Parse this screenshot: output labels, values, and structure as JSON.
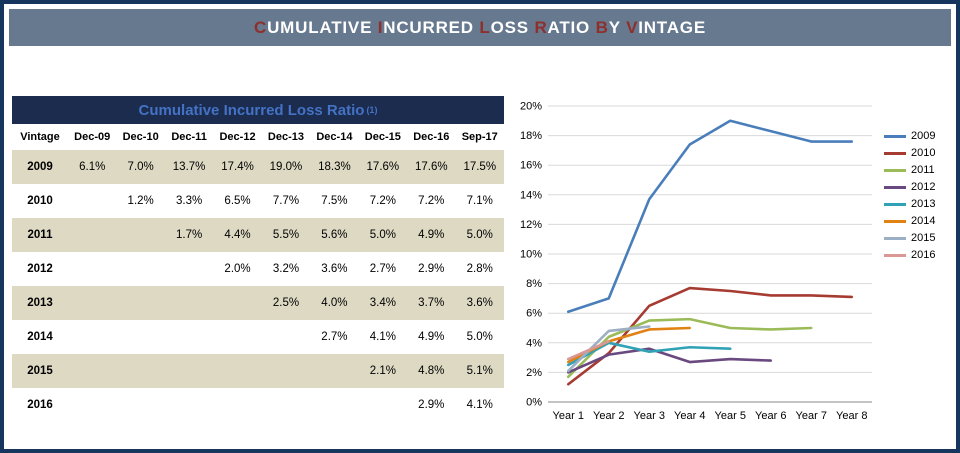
{
  "banner": {
    "title": "CUMULATIVE INCURRED LOSS RATIO BY VINTAGE"
  },
  "table": {
    "title": "Cumulative Incurred Loss Ratio",
    "title_superscript": "(1)",
    "columns": [
      "Vintage",
      "Dec-09",
      "Dec-10",
      "Dec-11",
      "Dec-12",
      "Dec-13",
      "Dec-14",
      "Dec-15",
      "Dec-16",
      "Sep-17"
    ],
    "rows": [
      {
        "vintage": "2009",
        "values": [
          "6.1%",
          "7.0%",
          "13.7%",
          "17.4%",
          "19.0%",
          "18.3%",
          "17.6%",
          "17.6%",
          "17.5%"
        ]
      },
      {
        "vintage": "2010",
        "values": [
          "",
          "1.2%",
          "3.3%",
          "6.5%",
          "7.7%",
          "7.5%",
          "7.2%",
          "7.2%",
          "7.1%"
        ]
      },
      {
        "vintage": "2011",
        "values": [
          "",
          "",
          "1.7%",
          "4.4%",
          "5.5%",
          "5.6%",
          "5.0%",
          "4.9%",
          "5.0%"
        ]
      },
      {
        "vintage": "2012",
        "values": [
          "",
          "",
          "",
          "2.0%",
          "3.2%",
          "3.6%",
          "2.7%",
          "2.9%",
          "2.8%"
        ]
      },
      {
        "vintage": "2013",
        "values": [
          "",
          "",
          "",
          "",
          "2.5%",
          "4.0%",
          "3.4%",
          "3.7%",
          "3.6%"
        ]
      },
      {
        "vintage": "2014",
        "values": [
          "",
          "",
          "",
          "",
          "",
          "2.7%",
          "4.1%",
          "4.9%",
          "5.0%"
        ]
      },
      {
        "vintage": "2015",
        "values": [
          "",
          "",
          "",
          "",
          "",
          "",
          "2.1%",
          "4.8%",
          "5.1%"
        ]
      },
      {
        "vintage": "2016",
        "values": [
          "",
          "",
          "",
          "",
          "",
          "",
          "",
          "2.9%",
          "4.1%"
        ]
      }
    ]
  },
  "chart_data": {
    "type": "line",
    "title": "",
    "xlabel": "",
    "ylabel": "",
    "categories": [
      "Year 1",
      "Year 2",
      "Year 3",
      "Year 4",
      "Year 5",
      "Year 6",
      "Year 7",
      "Year 8"
    ],
    "series": [
      {
        "name": "2009",
        "color": "#4A7EBB",
        "values": [
          6.1,
          7.0,
          13.7,
          17.4,
          19.0,
          18.3,
          17.6,
          17.6
        ]
      },
      {
        "name": "2010",
        "color": "#A63B32",
        "values": [
          1.2,
          3.3,
          6.5,
          7.7,
          7.5,
          7.2,
          7.2,
          7.1
        ]
      },
      {
        "name": "2011",
        "color": "#9BBB59",
        "values": [
          1.7,
          4.4,
          5.5,
          5.6,
          5.0,
          4.9,
          5.0
        ]
      },
      {
        "name": "2012",
        "color": "#69497F",
        "values": [
          2.0,
          3.2,
          3.6,
          2.7,
          2.9,
          2.8
        ]
      },
      {
        "name": "2013",
        "color": "#31A2B5",
        "values": [
          2.5,
          4.0,
          3.4,
          3.7,
          3.6
        ]
      },
      {
        "name": "2014",
        "color": "#E08214",
        "values": [
          2.7,
          4.1,
          4.9,
          5.0
        ]
      },
      {
        "name": "2015",
        "color": "#9CAFC5",
        "values": [
          2.1,
          4.8,
          5.1
        ]
      },
      {
        "name": "2016",
        "color": "#D99795",
        "values": [
          2.9,
          4.1
        ]
      }
    ],
    "ylim": [
      0,
      20
    ],
    "ytick_step": 2,
    "ytick_suffix": "%",
    "grid": true,
    "legend_position": "right"
  },
  "colors": {
    "frame_border": "#17365D",
    "banner_background": "#66798F",
    "banner_initial": "#8E2F2B",
    "table_title_band": "#1B2C4F",
    "table_title_text": "#4472C4",
    "row_stripe": "#DDD9C3",
    "gridline": "#D9D9D9",
    "axis_line": "#898989"
  }
}
